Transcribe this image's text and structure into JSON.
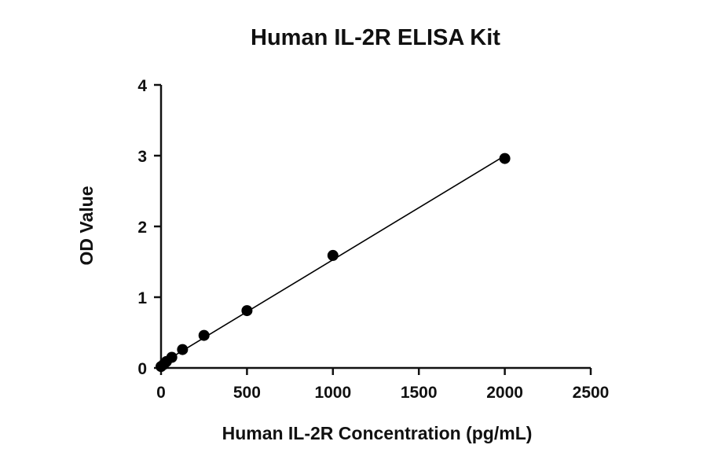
{
  "chart_data": {
    "type": "scatter",
    "title": "Human IL-2R ELISA Kit",
    "xlabel": "Human IL-2R Concentration (pg/mL)",
    "ylabel": "OD Value",
    "xlim": [
      0,
      2500
    ],
    "ylim": [
      0,
      4
    ],
    "xticks": [
      "0",
      "500",
      "1000",
      "1500",
      "2000",
      "2500"
    ],
    "yticks": [
      "0",
      "1",
      "2",
      "3",
      "4"
    ],
    "grid": false,
    "legend": "none",
    "fit_line": "linear",
    "marker_color": "#000000",
    "line_color": "#000000",
    "points": [
      {
        "x": 0,
        "y": 0.02
      },
      {
        "x": 15.6,
        "y": 0.05
      },
      {
        "x": 31.25,
        "y": 0.09
      },
      {
        "x": 62.5,
        "y": 0.15
      },
      {
        "x": 125,
        "y": 0.26
      },
      {
        "x": 250,
        "y": 0.46
      },
      {
        "x": 500,
        "y": 0.81
      },
      {
        "x": 1000,
        "y": 1.59
      },
      {
        "x": 2000,
        "y": 2.96
      }
    ]
  }
}
